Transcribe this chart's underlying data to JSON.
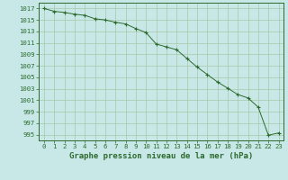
{
  "x": [
    0,
    1,
    2,
    3,
    4,
    5,
    6,
    7,
    8,
    9,
    10,
    11,
    12,
    13,
    14,
    15,
    16,
    17,
    18,
    19,
    20,
    21,
    22,
    23
  ],
  "y": [
    1017.0,
    1016.5,
    1016.3,
    1016.0,
    1015.8,
    1015.2,
    1015.0,
    1014.6,
    1014.3,
    1013.5,
    1012.8,
    1010.8,
    1010.3,
    1009.8,
    1008.3,
    1006.8,
    1005.5,
    1004.2,
    1003.1,
    1002.0,
    1001.4,
    999.8,
    994.9,
    995.3
  ],
  "line_color": "#2d6a2d",
  "marker_color": "#2d6a2d",
  "bg_color": "#c8e8e8",
  "grid_color": "#a8c8a8",
  "xlabel": "Graphe pression niveau de la mer (hPa)",
  "ylim_min": 994,
  "ylim_max": 1018,
  "ytick_values": [
    995,
    997,
    999,
    1001,
    1003,
    1005,
    1007,
    1009,
    1011,
    1013,
    1015,
    1017
  ],
  "xtick_labels": [
    "0",
    "1",
    "2",
    "3",
    "4",
    "5",
    "6",
    "7",
    "8",
    "9",
    "10",
    "11",
    "12",
    "13",
    "14",
    "15",
    "16",
    "17",
    "18",
    "19",
    "20",
    "21",
    "22",
    "23"
  ],
  "xlabel_fontsize": 6.5,
  "tick_fontsize": 5.2,
  "font_family": "monospace"
}
